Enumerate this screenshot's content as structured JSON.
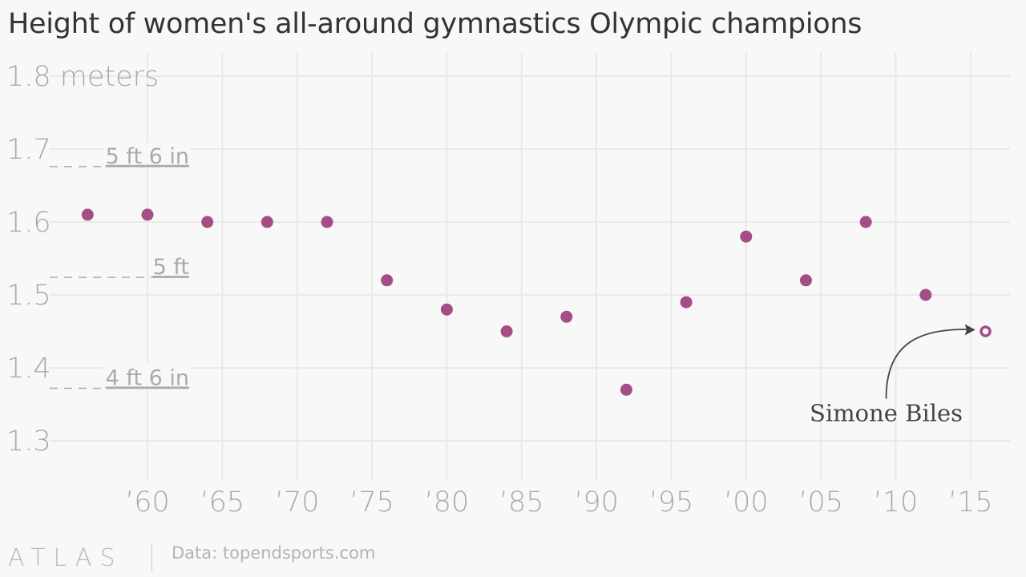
{
  "title": "Height of women's all-around gymnastics Olympic champions",
  "footer": {
    "logo": "ATLAS",
    "source": "Data: topendsports.com"
  },
  "colors": {
    "point": "#a54e85",
    "grid": "#e9e9e9",
    "tick_text": "#a9a9a9",
    "reference": "#aaaaaa",
    "annotation": "#444444"
  },
  "chart_data": {
    "type": "scatter",
    "title": "Height of women's all-around gymnastics Olympic champions",
    "ylabel": "meters",
    "xlim": [
      1954,
      2018
    ],
    "ylim": [
      1.28,
      1.82
    ],
    "grid": true,
    "x_ticks": [
      {
        "value": 1960,
        "label": "’60"
      },
      {
        "value": 1965,
        "label": "’65"
      },
      {
        "value": 1970,
        "label": "’70"
      },
      {
        "value": 1975,
        "label": "’75"
      },
      {
        "value": 1980,
        "label": "’80"
      },
      {
        "value": 1985,
        "label": "’85"
      },
      {
        "value": 1990,
        "label": "’90"
      },
      {
        "value": 1995,
        "label": "’95"
      },
      {
        "value": 2000,
        "label": "’00"
      },
      {
        "value": 2005,
        "label": "’05"
      },
      {
        "value": 2010,
        "label": "’10"
      },
      {
        "value": 2015,
        "label": "’15"
      }
    ],
    "y_ticks": [
      {
        "value": 1.8,
        "label": "1.8 meters"
      },
      {
        "value": 1.7,
        "label": "1.7"
      },
      {
        "value": 1.6,
        "label": "1.6"
      },
      {
        "value": 1.5,
        "label": "1.5"
      },
      {
        "value": 1.4,
        "label": "1.4"
      },
      {
        "value": 1.3,
        "label": "1.3"
      }
    ],
    "reference_lines": [
      {
        "value": 1.676,
        "label": "5 ft 6 in"
      },
      {
        "value": 1.524,
        "label": "5 ft"
      },
      {
        "value": 1.372,
        "label": "4 ft 6 in"
      }
    ],
    "points": [
      {
        "x": 1956,
        "y": 1.61
      },
      {
        "x": 1960,
        "y": 1.61
      },
      {
        "x": 1964,
        "y": 1.6
      },
      {
        "x": 1968,
        "y": 1.6
      },
      {
        "x": 1972,
        "y": 1.6
      },
      {
        "x": 1976,
        "y": 1.52
      },
      {
        "x": 1980,
        "y": 1.48
      },
      {
        "x": 1984,
        "y": 1.45
      },
      {
        "x": 1988,
        "y": 1.47
      },
      {
        "x": 1992,
        "y": 1.37
      },
      {
        "x": 1996,
        "y": 1.49
      },
      {
        "x": 2000,
        "y": 1.58
      },
      {
        "x": 2004,
        "y": 1.52
      },
      {
        "x": 2008,
        "y": 1.6
      },
      {
        "x": 2012,
        "y": 1.5
      },
      {
        "x": 2016,
        "y": 1.45,
        "hollow": true
      }
    ],
    "annotations": [
      {
        "text": "Simone Biles",
        "x": 2016,
        "y": 1.45
      }
    ]
  }
}
